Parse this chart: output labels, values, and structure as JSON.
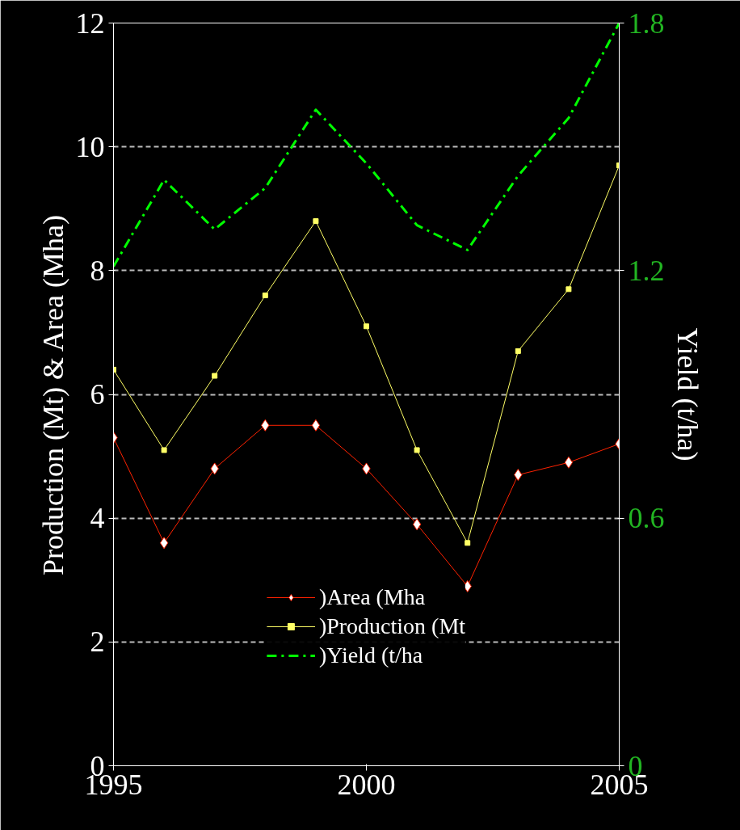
{
  "chart_data": {
    "type": "line",
    "x": [
      1995,
      1996,
      1997,
      1998,
      1999,
      2000,
      2001,
      2002,
      2003,
      2004,
      2005
    ],
    "ylabel": "Production (Mt) & Area (Mha)",
    "y2label": "Yield (t/ha)",
    "xlim": [
      1995,
      2005
    ],
    "xticks": [
      1995,
      2000,
      2005
    ],
    "ylim": [
      0,
      12
    ],
    "yticks": [
      0,
      2,
      4,
      6,
      8,
      10,
      12
    ],
    "y2lim": [
      0,
      1.8
    ],
    "y2ticks": [
      0,
      0.6,
      1.2,
      1.8
    ],
    "grid": "y",
    "legend": "bottom",
    "series": [
      {
        "name": ")Area (Mha",
        "color": "#ff2200",
        "marker": "diamond",
        "line_style": "solid",
        "values": [
          5.3,
          3.6,
          4.8,
          5.5,
          5.5,
          4.8,
          3.9,
          2.9,
          4.7,
          4.9,
          5.2
        ]
      },
      {
        "name": ")Production (Mt",
        "color": "#ffff66",
        "marker": "square",
        "line_style": "solid",
        "values": [
          6.4,
          5.1,
          6.3,
          7.6,
          8.8,
          7.1,
          5.1,
          3.6,
          6.7,
          7.7,
          9.7
        ]
      },
      {
        "name": ")Yield (t/ha",
        "color": "#00ff00",
        "marker": "none",
        "line_style": "dashdot",
        "axis": "y2",
        "values": [
          1.21,
          1.42,
          1.3,
          1.4,
          1.59,
          1.46,
          1.31,
          1.25,
          1.43,
          1.57,
          1.8
        ]
      }
    ]
  }
}
